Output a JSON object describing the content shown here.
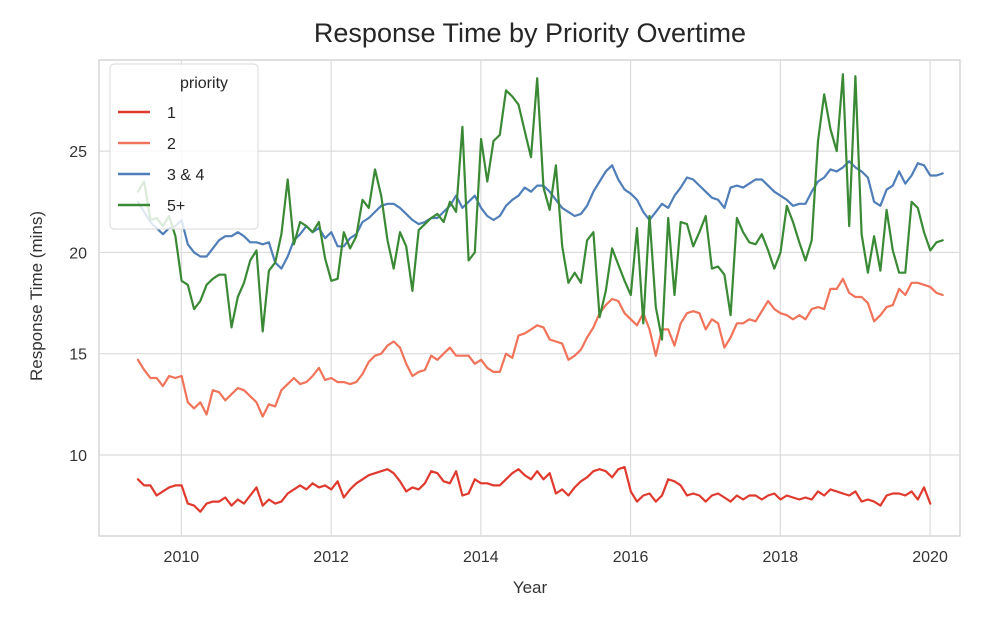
{
  "chart_data": {
    "type": "line",
    "title": "Response Time by Priority Overtime",
    "xlabel": "Year",
    "ylabel": "Response Time (mins)",
    "xlim": [
      2008.9,
      2020.4
    ],
    "ylim": [
      6.0,
      29.5
    ],
    "x_ticks": [
      2010,
      2012,
      2014,
      2016,
      2018,
      2020
    ],
    "y_ticks": [
      10,
      15,
      20,
      25
    ],
    "grid": true,
    "legend": {
      "title": "priority",
      "placement": "top-left"
    },
    "x_start": 2009.42,
    "x_step": 0.08333,
    "series": [
      {
        "name": "1",
        "color": "#e03a2f",
        "values": [
          8.8,
          8.5,
          8.5,
          8.0,
          8.2,
          8.4,
          8.5,
          8.5,
          7.6,
          7.5,
          7.2,
          7.6,
          7.7,
          7.7,
          7.9,
          7.5,
          7.8,
          7.6,
          8.0,
          8.4,
          7.5,
          7.8,
          7.6,
          7.7,
          8.1,
          8.3,
          8.5,
          8.3,
          8.6,
          8.4,
          8.5,
          8.3,
          8.7,
          7.9,
          8.3,
          8.6,
          8.8,
          9.0,
          9.1,
          9.2,
          9.3,
          9.1,
          8.7,
          8.2,
          8.4,
          8.3,
          8.6,
          9.2,
          9.1,
          8.7,
          8.6,
          9.2,
          8.0,
          8.1,
          8.8,
          8.6,
          8.6,
          8.5,
          8.5,
          8.8,
          9.1,
          9.3,
          9.0,
          8.8,
          9.2,
          8.8,
          9.1,
          8.1,
          8.3,
          8.0,
          8.4,
          8.7,
          8.9,
          9.2,
          9.3,
          9.2,
          8.9,
          9.3,
          9.4,
          8.2,
          7.7,
          8.0,
          8.1,
          7.7,
          8.0,
          8.8,
          8.7,
          8.5,
          8.0,
          8.1,
          8.0,
          7.7,
          8.0,
          8.1,
          7.9,
          7.7,
          8.0,
          7.8,
          8.0,
          8.0,
          7.8,
          8.0,
          8.1,
          7.8,
          8.0,
          7.9,
          7.8,
          7.9,
          7.8,
          8.2,
          8.0,
          8.3,
          8.2,
          8.1,
          8.0,
          8.2,
          7.7,
          7.8,
          7.7,
          7.5,
          8.0,
          8.1,
          8.1,
          8.0,
          8.2,
          7.8,
          8.4,
          7.6
        ]
      },
      {
        "name": "2",
        "color": "#f0735a",
        "values": [
          14.7,
          14.2,
          13.8,
          13.8,
          13.4,
          13.9,
          13.8,
          13.9,
          12.6,
          12.3,
          12.6,
          12.0,
          13.2,
          13.1,
          12.7,
          13.0,
          13.3,
          13.2,
          12.9,
          12.6,
          11.9,
          12.5,
          12.4,
          13.2,
          13.5,
          13.8,
          13.5,
          13.6,
          13.9,
          14.3,
          13.7,
          13.8,
          13.6,
          13.6,
          13.5,
          13.6,
          14.0,
          14.6,
          14.9,
          15.0,
          15.4,
          15.6,
          15.3,
          14.5,
          13.9,
          14.1,
          14.2,
          14.9,
          14.7,
          15.0,
          15.3,
          14.9,
          14.9,
          14.9,
          14.5,
          14.7,
          14.3,
          14.1,
          14.1,
          15.0,
          14.8,
          15.9,
          16.0,
          16.2,
          16.4,
          16.3,
          15.7,
          15.6,
          15.5,
          14.7,
          14.9,
          15.2,
          15.8,
          16.3,
          17.0,
          17.4,
          17.7,
          17.6,
          17.0,
          16.7,
          16.4,
          17.0,
          16.2,
          14.9,
          16.2,
          16.2,
          15.4,
          16.5,
          17.0,
          17.1,
          17.0,
          16.2,
          16.7,
          16.5,
          15.3,
          15.8,
          16.5,
          16.5,
          16.7,
          16.6,
          17.1,
          17.6,
          17.2,
          17.0,
          16.9,
          16.7,
          16.9,
          16.7,
          17.2,
          17.3,
          17.2,
          18.2,
          18.2,
          18.7,
          18.0,
          17.8,
          17.8,
          17.5,
          16.6,
          16.9,
          17.3,
          17.4,
          18.2,
          17.9,
          18.5,
          18.5,
          18.4,
          18.3,
          18.0,
          17.9
        ]
      },
      {
        "name": "3 & 4",
        "color": "#4f7eb8",
        "values": [
          22.5,
          22.0,
          21.5,
          21.2,
          20.9,
          21.2,
          21.3,
          21.6,
          20.4,
          20.0,
          19.8,
          19.8,
          20.2,
          20.6,
          20.8,
          20.8,
          21.0,
          20.8,
          20.5,
          20.5,
          20.4,
          20.5,
          19.5,
          19.2,
          19.8,
          20.6,
          20.9,
          21.3,
          21.0,
          21.2,
          20.7,
          21.0,
          20.3,
          20.3,
          20.7,
          20.9,
          21.5,
          21.7,
          22.0,
          22.3,
          22.4,
          22.4,
          22.2,
          21.9,
          21.6,
          21.4,
          21.5,
          21.7,
          21.7,
          22.0,
          22.3,
          22.8,
          22.2,
          22.5,
          22.8,
          22.2,
          21.8,
          21.6,
          21.8,
          22.3,
          22.6,
          22.8,
          23.2,
          23.0,
          23.3,
          23.3,
          23.0,
          22.6,
          22.2,
          22.0,
          21.8,
          21.9,
          22.3,
          23.0,
          23.5,
          24.0,
          24.3,
          23.6,
          23.1,
          22.9,
          22.6,
          22.0,
          21.6,
          22.0,
          22.4,
          22.2,
          22.8,
          23.2,
          23.7,
          23.6,
          23.3,
          23.0,
          22.7,
          22.6,
          22.2,
          23.2,
          23.3,
          23.2,
          23.4,
          23.6,
          23.6,
          23.3,
          23.0,
          22.8,
          22.6,
          22.3,
          22.4,
          22.4,
          23.0,
          23.5,
          23.7,
          24.1,
          24.0,
          24.2,
          24.5,
          24.2,
          24.0,
          23.7,
          22.5,
          22.3,
          23.1,
          23.3,
          24.0,
          23.4,
          23.8,
          24.4,
          24.3,
          23.8,
          23.8,
          23.9
        ]
      },
      {
        "name": "5+",
        "color": "#3a8a35",
        "values": [
          23.0,
          23.5,
          21.6,
          21.7,
          21.3,
          21.8,
          20.8,
          18.6,
          18.4,
          17.2,
          17.6,
          18.4,
          18.7,
          18.9,
          18.9,
          16.3,
          17.8,
          18.5,
          19.6,
          20.1,
          16.1,
          19.1,
          19.5,
          20.9,
          23.6,
          20.4,
          21.5,
          21.3,
          21.0,
          21.5,
          19.7,
          18.6,
          18.7,
          21.0,
          20.2,
          20.8,
          22.6,
          22.2,
          24.1,
          22.8,
          20.6,
          19.2,
          21.0,
          20.3,
          18.1,
          21.1,
          21.4,
          21.7,
          21.9,
          21.5,
          22.5,
          22.0,
          26.2,
          19.6,
          20.0,
          25.6,
          23.5,
          25.5,
          25.8,
          28.0,
          27.7,
          27.3,
          26.0,
          24.7,
          28.6,
          23.2,
          22.1,
          24.3,
          20.3,
          18.5,
          19.0,
          18.5,
          20.6,
          21.0,
          16.8,
          18.1,
          20.2,
          19.4,
          18.6,
          17.9,
          21.2,
          16.5,
          21.8,
          17.3,
          15.7,
          21.7,
          17.9,
          21.5,
          21.4,
          20.3,
          21.0,
          21.8,
          19.2,
          19.3,
          18.9,
          16.9,
          21.7,
          21.0,
          20.5,
          20.4,
          20.9,
          20.1,
          19.2,
          20.0,
          22.3,
          21.5,
          20.5,
          19.6,
          20.6,
          25.5,
          27.8,
          26.1,
          25.0,
          28.8,
          21.3,
          28.7,
          20.9,
          19.0,
          20.8,
          19.1,
          22.1,
          20.1,
          19.0,
          19.0,
          22.5,
          22.2,
          21.0,
          20.1,
          20.5,
          20.6
        ]
      }
    ]
  }
}
